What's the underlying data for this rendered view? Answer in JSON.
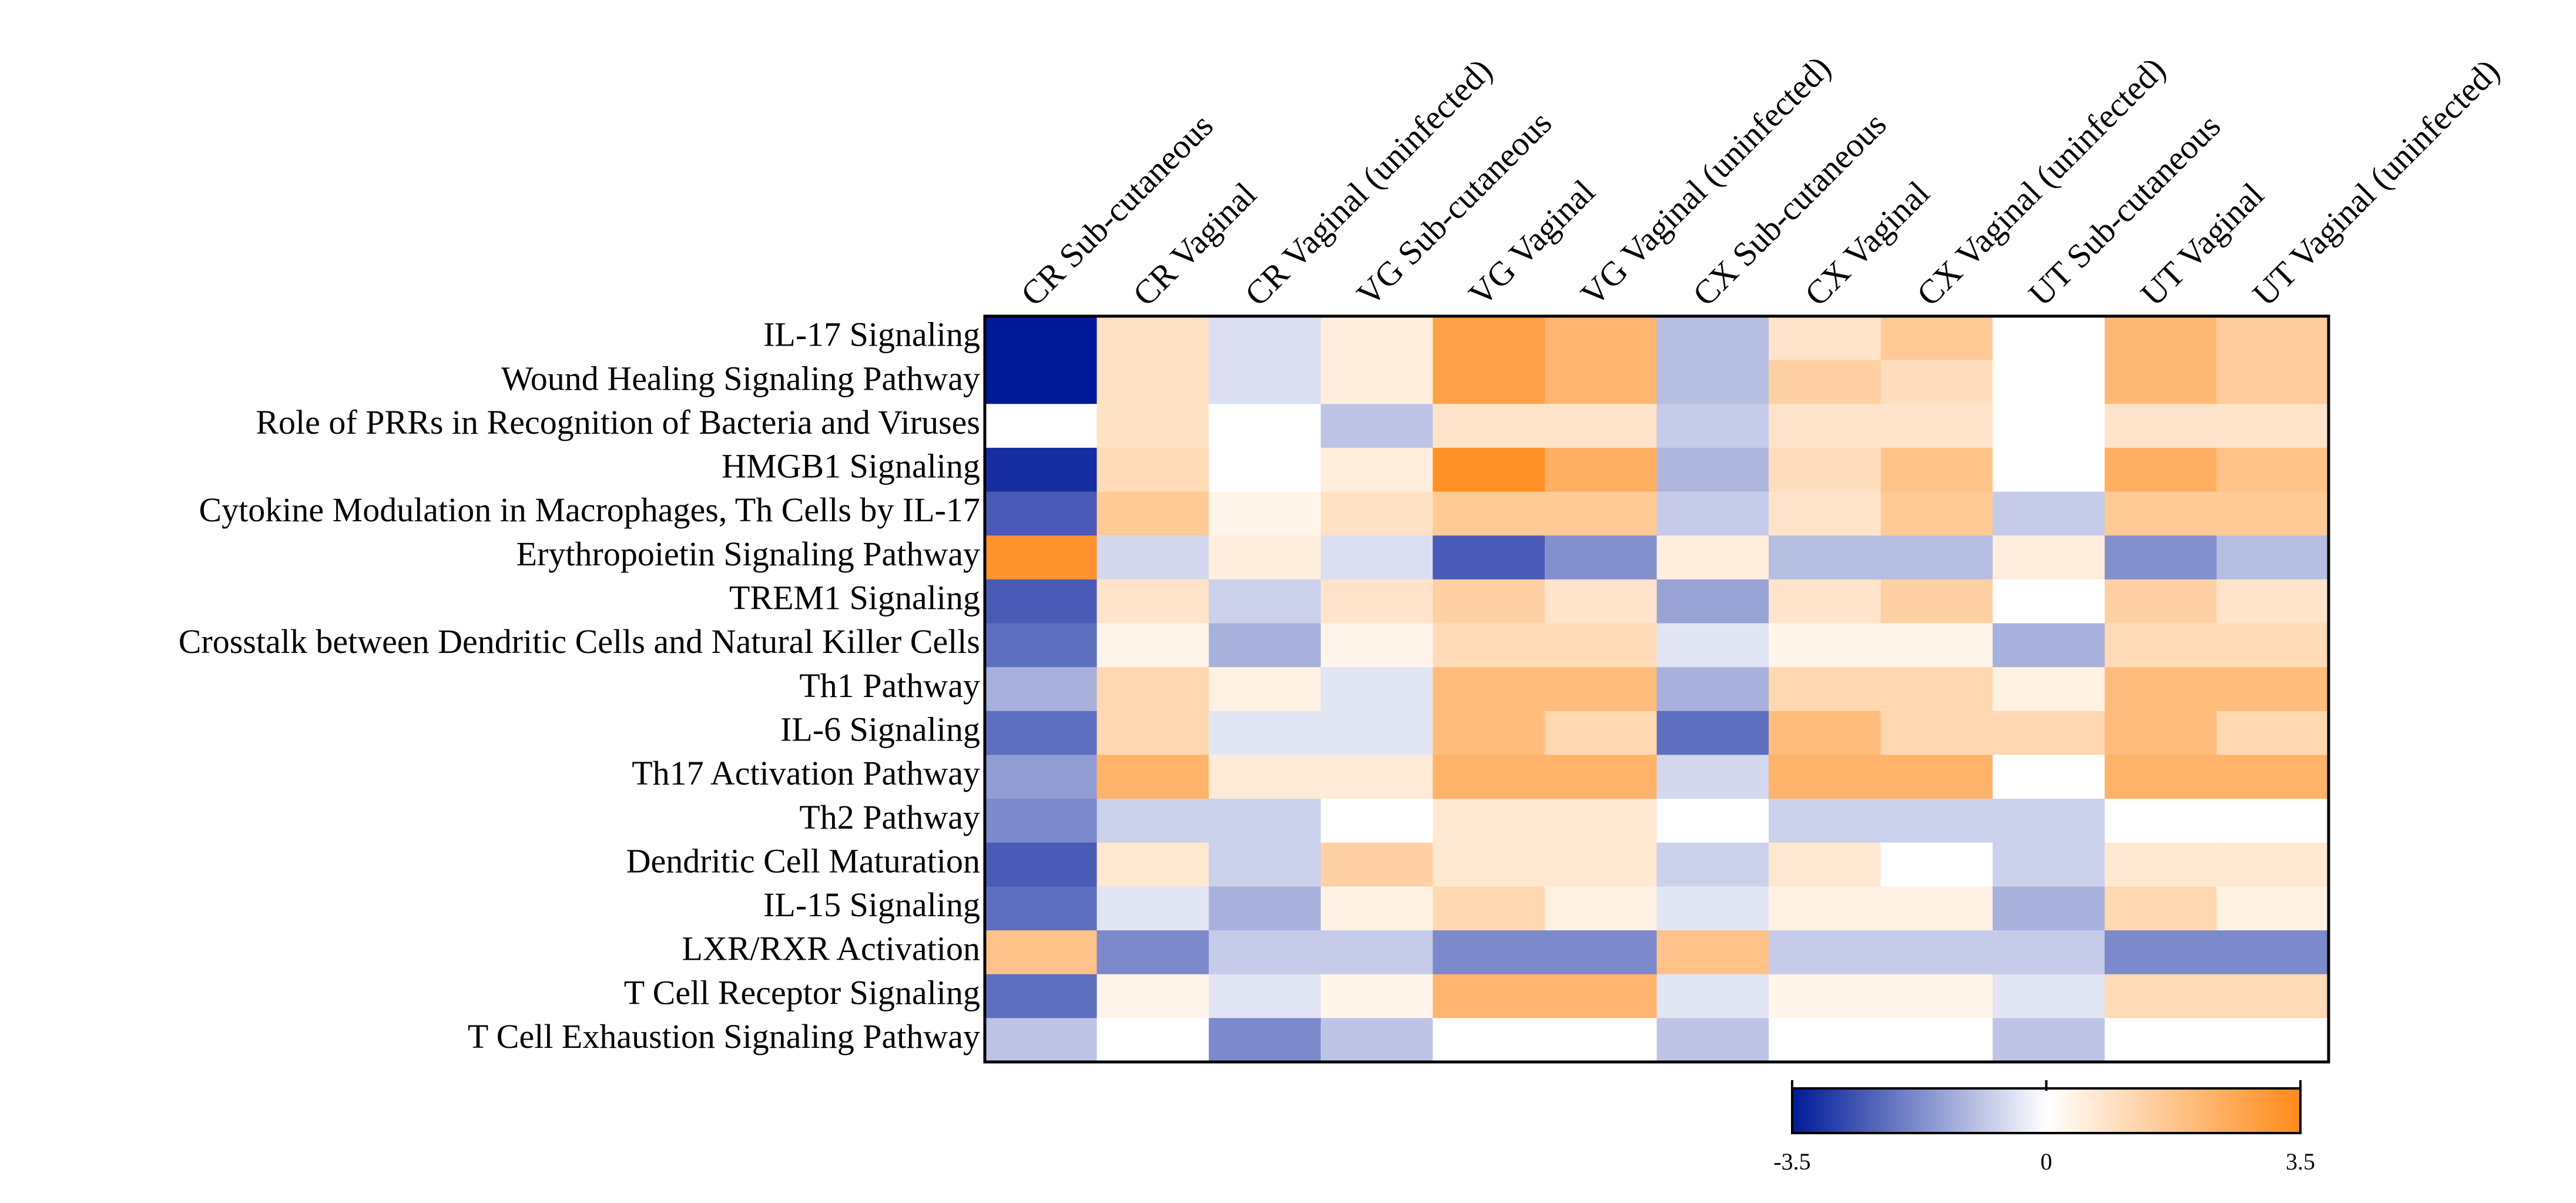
{
  "chart_data": {
    "type": "heatmap",
    "title": "",
    "columns": [
      "CR Sub-cutaneous",
      "CR Vaginal",
      "CR Vaginal (uninfected)",
      "VG Sub-cutaneous",
      "VG Vaginal",
      "VG Vaginal (uninfected)",
      "CX Sub-cutaneous",
      "CX Vaginal",
      "CX Vaginal (uninfected)",
      "UT Sub-cutaneous",
      "UT Vaginal",
      "UT Vaginal (uninfected)"
    ],
    "rows": [
      "IL-17 Signaling",
      "Wound Healing Signaling Pathway",
      "Role of PRRs in Recognition of Bacteria and Viruses",
      "HMGB1 Signaling",
      "Cytokine Modulation in Macrophages, Th Cells by IL-17",
      "Erythropoietin Signaling Pathway",
      "TREM1 Signaling",
      "Crosstalk between Dendritic Cells and Natural Killer Cells",
      "Th1 Pathway",
      "IL-6 Signaling",
      "Th17 Activation Pathway",
      "Th2 Pathway",
      "Dendritic Cell Maturation",
      "IL-15 Signaling",
      "LXR/RXR Activation",
      "T Cell Receptor Signaling",
      "T Cell Exhaustion Signaling Pathway"
    ],
    "values": [
      [
        -3.5,
        0.9,
        -0.5,
        0.5,
        2.8,
        2.2,
        -1.0,
        0.8,
        1.6,
        0.0,
        2.1,
        1.5
      ],
      [
        -3.5,
        0.9,
        -0.5,
        0.5,
        2.8,
        2.2,
        -1.0,
        1.4,
        1.0,
        0.0,
        2.1,
        1.5
      ],
      [
        0.0,
        0.9,
        0.0,
        -0.9,
        0.8,
        0.8,
        -0.8,
        0.8,
        0.8,
        0.0,
        0.8,
        0.8
      ],
      [
        -3.2,
        1.1,
        0.0,
        0.5,
        3.3,
        2.4,
        -1.1,
        1.0,
        1.8,
        0.0,
        2.4,
        1.8
      ],
      [
        -2.5,
        1.6,
        0.3,
        0.9,
        1.6,
        1.6,
        -0.8,
        0.8,
        1.6,
        -0.8,
        1.6,
        1.6
      ],
      [
        3.2,
        -0.6,
        0.5,
        -0.5,
        -2.5,
        -1.7,
        0.5,
        -1.0,
        -1.0,
        0.5,
        -1.7,
        -1.0
      ],
      [
        -2.5,
        0.8,
        -0.7,
        0.8,
        1.4,
        0.8,
        -1.4,
        0.8,
        1.4,
        0.0,
        1.4,
        0.8
      ],
      [
        -2.2,
        0.3,
        -1.2,
        0.3,
        1.1,
        1.1,
        -0.4,
        0.3,
        0.3,
        -1.2,
        1.1,
        1.1
      ],
      [
        -1.2,
        1.2,
        0.4,
        -0.4,
        2.0,
        2.0,
        -1.2,
        1.2,
        1.2,
        0.4,
        2.0,
        2.0
      ],
      [
        -2.2,
        1.2,
        -0.4,
        -0.4,
        2.0,
        1.2,
        -2.2,
        2.0,
        1.2,
        1.2,
        2.0,
        1.2
      ],
      [
        -1.5,
        2.3,
        0.6,
        0.6,
        2.3,
        2.3,
        -0.6,
        2.3,
        2.3,
        0.0,
        2.3,
        2.3
      ],
      [
        -1.8,
        -0.7,
        -0.7,
        0.0,
        0.7,
        0.7,
        0.0,
        -0.7,
        -0.7,
        -0.7,
        0.0,
        0.0
      ],
      [
        -2.5,
        0.7,
        -0.7,
        1.4,
        0.7,
        0.7,
        -0.7,
        0.7,
        0.0,
        -0.7,
        0.7,
        0.7
      ],
      [
        -2.2,
        -0.4,
        -1.2,
        0.4,
        1.2,
        0.4,
        -0.4,
        0.4,
        0.4,
        -1.2,
        1.2,
        0.4
      ],
      [
        1.8,
        -1.8,
        -0.8,
        -0.8,
        -1.8,
        -1.8,
        1.8,
        -0.8,
        -0.8,
        -0.8,
        -1.8,
        -1.8
      ],
      [
        -2.2,
        0.3,
        -0.4,
        0.3,
        2.2,
        2.2,
        -0.4,
        0.3,
        0.3,
        -0.4,
        1.1,
        1.1
      ],
      [
        -0.9,
        0.0,
        -1.8,
        -0.9,
        0.0,
        0.0,
        -0.9,
        0.0,
        0.0,
        -0.9,
        0.0,
        0.0
      ]
    ],
    "color_scale": {
      "min": -3.5,
      "max": 3.5,
      "low_color": "#001a99",
      "mid_color": "#ffffff",
      "high_color": "#ff8a1a"
    },
    "colorbar": {
      "tick_values": [
        -3.5,
        0,
        3.5
      ],
      "tick_labels": [
        "-3.5",
        "0",
        "3.5"
      ]
    }
  }
}
